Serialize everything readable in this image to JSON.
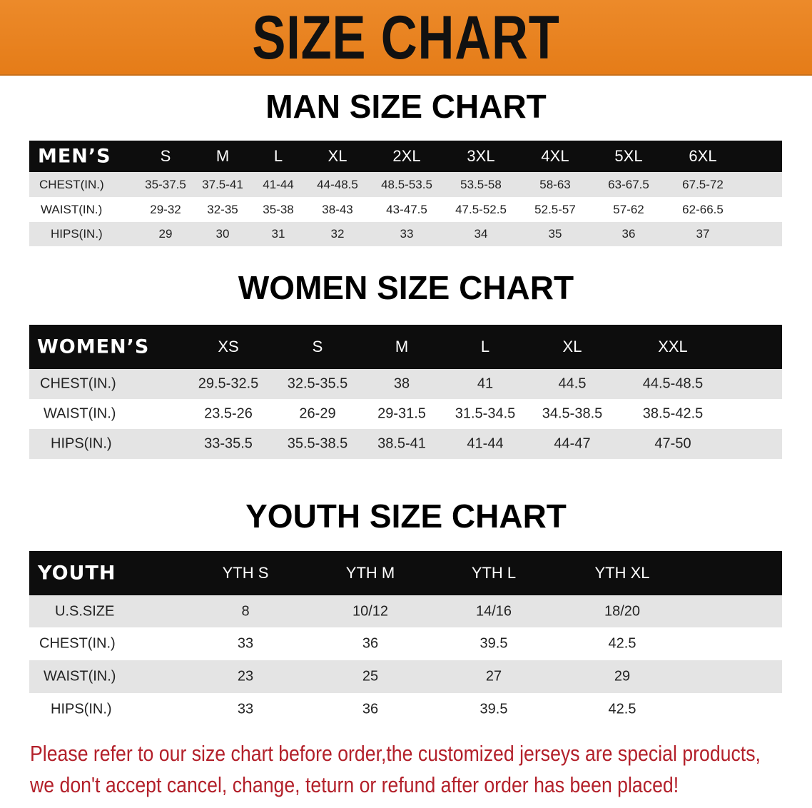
{
  "banner": {
    "title": "SIZE CHART",
    "color": "#e8831f"
  },
  "men": {
    "title": "MAN SIZE CHART",
    "header": [
      "MEN’S",
      "S",
      "M",
      "L",
      "XL",
      "2XL",
      "3XL",
      "4XL",
      "5XL",
      "6XL"
    ],
    "rows": [
      [
        "CHEST(IN.)",
        "35-37.5",
        "37.5-41",
        "41-44",
        "44-48.5",
        "48.5-53.5",
        "53.5-58",
        "58-63",
        "63-67.5",
        "67.5-72"
      ],
      [
        "WAIST(IN.)",
        "29-32",
        "32-35",
        "35-38",
        "38-43",
        "43-47.5",
        "47.5-52.5",
        "52.5-57",
        "57-62",
        "62-66.5"
      ],
      [
        "HIPS(IN.)",
        "29",
        "30",
        "31",
        "32",
        "33",
        "34",
        "35",
        "36",
        "37"
      ]
    ]
  },
  "women": {
    "title": "WOMEN SIZE CHART",
    "header": [
      "WOMEN’S",
      "XS",
      "S",
      "M",
      "L",
      "XL",
      "XXL"
    ],
    "rows": [
      [
        "CHEST(IN.)",
        "29.5-32.5",
        "32.5-35.5",
        "38",
        "41",
        "44.5",
        "44.5-48.5"
      ],
      [
        "WAIST(IN.)",
        "23.5-26",
        "26-29",
        "29-31.5",
        "31.5-34.5",
        "34.5-38.5",
        "38.5-42.5"
      ],
      [
        "HIPS(IN.)",
        "33-35.5",
        "35.5-38.5",
        "38.5-41",
        "41-44",
        "44-47",
        "47-50"
      ]
    ]
  },
  "youth": {
    "title": "YOUTH SIZE CHART",
    "header": [
      "YOUTH",
      "YTH S",
      "YTH M",
      "YTH L",
      "YTH XL"
    ],
    "rows": [
      [
        "U.S.SIZE",
        "8",
        "10/12",
        "14/16",
        "18/20"
      ],
      [
        "CHEST(IN.)",
        "33",
        "36",
        "39.5",
        "42.5"
      ],
      [
        "WAIST(IN.)",
        "23",
        "25",
        "27",
        "29"
      ],
      [
        "HIPS(IN.)",
        "33",
        "36",
        "39.5",
        "42.5"
      ]
    ]
  },
  "note": {
    "line1": "Please refer to our size chart before order,the customized jerseys are special products,",
    "line2": "we don't accept cancel, change, teturn or refund after order has been placed!",
    "color": "#b3202a"
  }
}
